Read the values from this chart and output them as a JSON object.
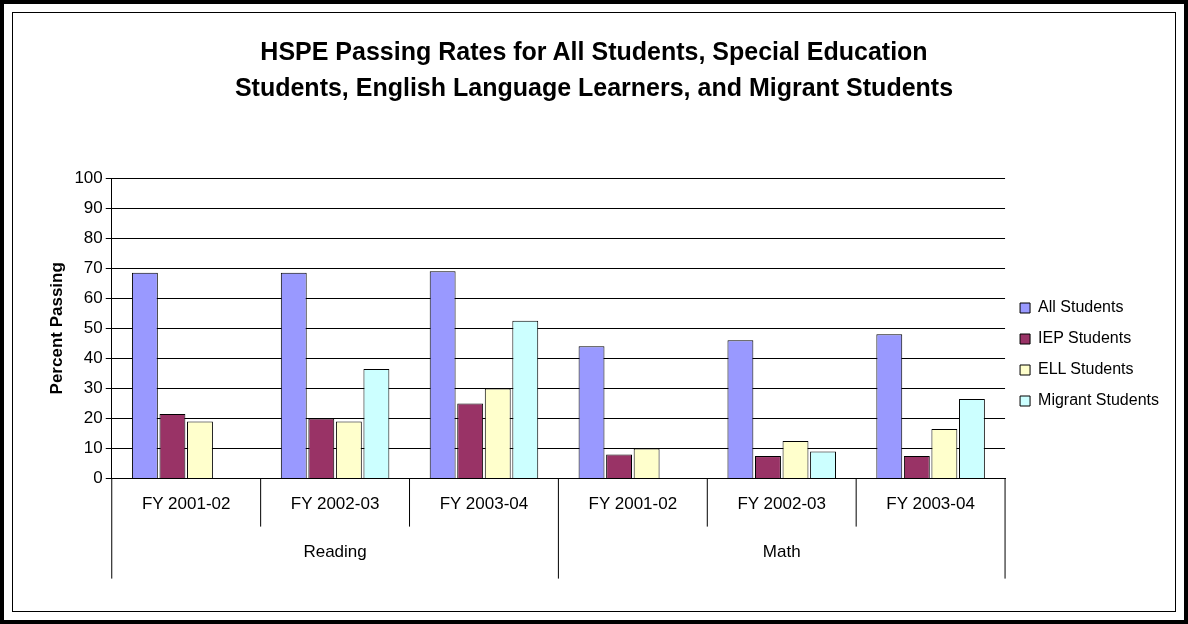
{
  "chart_data": {
    "type": "bar",
    "title": "HSPE Passing Rates for All Students, Special Education Students, English Language Learners, and Migrant Students",
    "ylabel": "Percent Passing",
    "categories": [
      "FY 2001-02",
      "FY 2002-03",
      "FY 2003-04",
      "FY 2001-02",
      "FY 2002-03",
      "FY 2003-04"
    ],
    "series": [
      {
        "name": "All Students",
        "color": "#9999ff",
        "values": [
          68.5,
          68.5,
          69,
          44,
          46,
          48
        ]
      },
      {
        "name": "IEP Students",
        "color": "#993366",
        "values": [
          21.5,
          20,
          25,
          8,
          7.5,
          7.5
        ]
      },
      {
        "name": "ELL Students",
        "color": "#ffffcc",
        "values": [
          19,
          19,
          30,
          10,
          12.5,
          16.5
        ]
      },
      {
        "name": "Migrant Students",
        "color": "#ccffff",
        "values": [
          null,
          36.5,
          52.5,
          null,
          9,
          26.5
        ]
      }
    ],
    "annotations": [
      "Reading",
      "Math"
    ],
    "ylim": [
      0,
      100
    ],
    "yticks": [
      0,
      10,
      20,
      30,
      40,
      50,
      60,
      70,
      80,
      90,
      100
    ],
    "grid": "y",
    "legend": "right"
  }
}
